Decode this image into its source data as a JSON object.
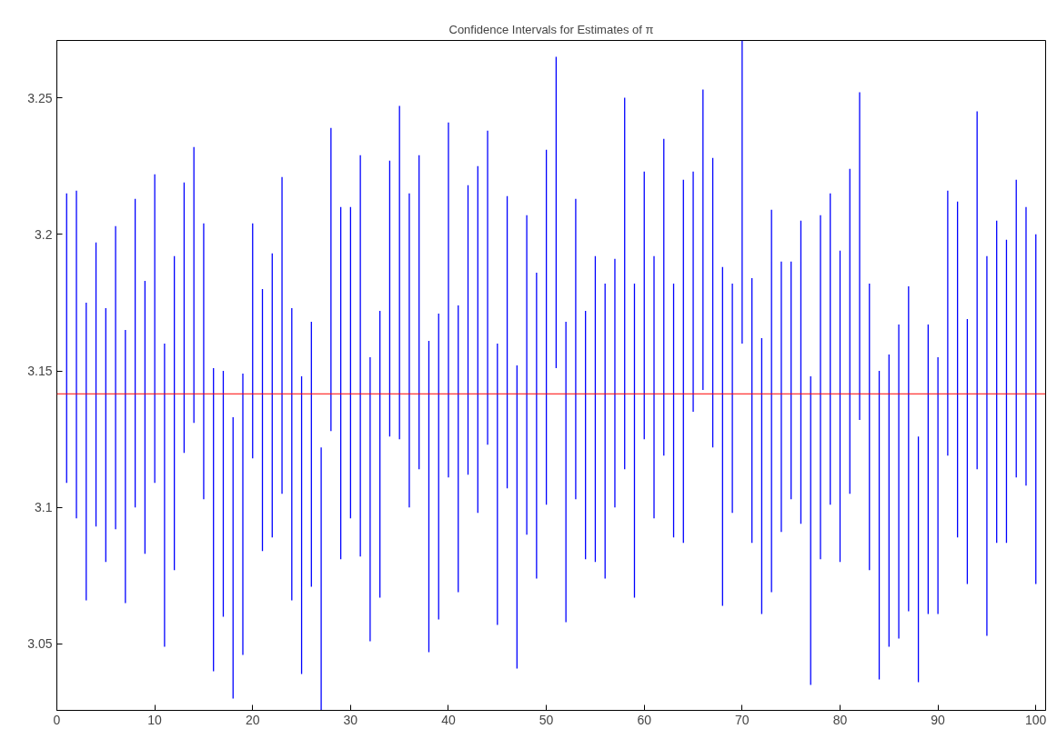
{
  "chart_data": {
    "type": "bar",
    "title": "Confidence Intervals for Estimates of π",
    "x": [
      1,
      2,
      3,
      4,
      5,
      6,
      7,
      8,
      9,
      10,
      11,
      12,
      13,
      14,
      15,
      16,
      17,
      18,
      19,
      20,
      21,
      22,
      23,
      24,
      25,
      26,
      27,
      28,
      29,
      30,
      31,
      32,
      33,
      34,
      35,
      36,
      37,
      38,
      39,
      40,
      41,
      42,
      43,
      44,
      45,
      46,
      47,
      48,
      49,
      50,
      51,
      52,
      53,
      54,
      55,
      56,
      57,
      58,
      59,
      60,
      61,
      62,
      63,
      64,
      65,
      66,
      67,
      68,
      69,
      70,
      71,
      72,
      73,
      74,
      75,
      76,
      77,
      78,
      79,
      80,
      81,
      82,
      83,
      84,
      85,
      86,
      87,
      88,
      89,
      90,
      91,
      92,
      93,
      94,
      95,
      96,
      97,
      98,
      99,
      100
    ],
    "base": [
      3.109,
      3.096,
      3.066,
      3.093,
      3.08,
      3.092,
      3.065,
      3.1,
      3.083,
      3.109,
      3.049,
      3.077,
      3.12,
      3.131,
      3.103,
      3.04,
      3.06,
      3.03,
      3.046,
      3.118,
      3.084,
      3.089,
      3.105,
      3.066,
      3.039,
      3.071,
      3.0257,
      3.128,
      3.081,
      3.096,
      3.082,
      3.051,
      3.067,
      3.126,
      3.125,
      3.1,
      3.114,
      3.047,
      3.059,
      3.111,
      3.069,
      3.112,
      3.098,
      3.123,
      3.057,
      3.107,
      3.041,
      3.09,
      3.074,
      3.101,
      3.151,
      3.058,
      3.103,
      3.081,
      3.08,
      3.074,
      3.1,
      3.114,
      3.067,
      3.125,
      3.096,
      3.119,
      3.089,
      3.087,
      3.135,
      3.143,
      3.122,
      3.064,
      3.098,
      3.16,
      3.087,
      3.061,
      3.069,
      3.091,
      3.103,
      3.094,
      3.035,
      3.081,
      3.101,
      3.08,
      3.105,
      3.132,
      3.077,
      3.037,
      3.049,
      3.052,
      3.062,
      3.036,
      3.061,
      3.061,
      3.119,
      3.089,
      3.072,
      3.114,
      3.053,
      3.087,
      3.087,
      3.111,
      3.108,
      3.072
    ],
    "values": [
      0.106,
      0.12,
      0.109,
      0.104,
      0.093,
      0.111,
      0.1,
      0.113,
      0.1,
      0.113,
      0.111,
      0.115,
      0.099,
      0.101,
      0.101,
      0.111,
      0.09,
      0.103,
      0.103,
      0.086,
      0.096,
      0.104,
      0.116,
      0.107,
      0.109,
      0.097,
      0.0963,
      0.111,
      0.129,
      0.114,
      0.147,
      0.104,
      0.105,
      0.101,
      0.122,
      0.115,
      0.115,
      0.114,
      0.112,
      0.13,
      0.105,
      0.106,
      0.127,
      0.115,
      0.103,
      0.107,
      0.111,
      0.117,
      0.112,
      0.13,
      0.114,
      0.11,
      0.11,
      0.091,
      0.112,
      0.108,
      0.091,
      0.136,
      0.115,
      0.098,
      0.096,
      0.116,
      0.093,
      0.133,
      0.088,
      0.11,
      0.106,
      0.124,
      0.084,
      0.111,
      0.097,
      0.101,
      0.14,
      0.099,
      0.087,
      0.111,
      0.113,
      0.126,
      0.114,
      0.114,
      0.119,
      0.12,
      0.105,
      0.113,
      0.107,
      0.115,
      0.119,
      0.09,
      0.106,
      0.094,
      0.097,
      0.123,
      0.097,
      0.131,
      0.139,
      0.118,
      0.111,
      0.109,
      0.102,
      0.128
    ],
    "color": "#0000ff",
    "xlim": [
      0,
      101
    ],
    "ylim": [
      3.0257,
      3.271
    ],
    "xticks": [
      0,
      10,
      20,
      30,
      40,
      50,
      60,
      70,
      80,
      90,
      100
    ],
    "yticks": [
      3.05,
      3.1,
      3.15,
      3.2,
      3.25
    ],
    "ref_lines": [
      {
        "axis": "y",
        "value": 3.1416,
        "color": "#ff0000"
      }
    ],
    "grid": false
  }
}
